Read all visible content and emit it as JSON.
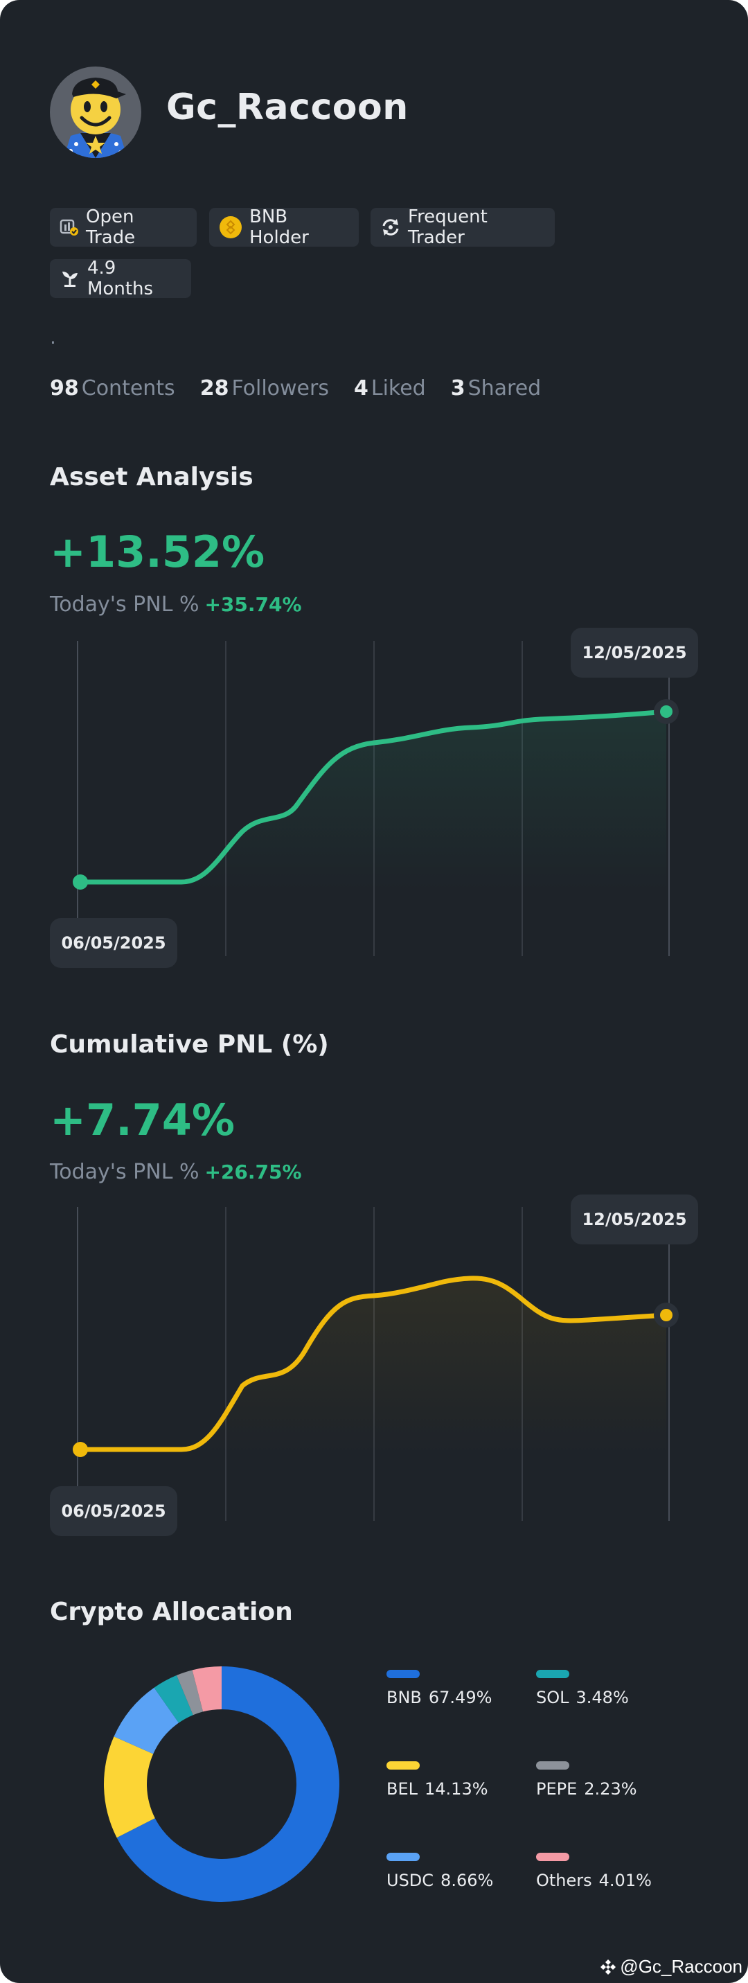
{
  "profile": {
    "username": "Gc_Raccoon",
    "badges": [
      {
        "label": "Open Trade",
        "icon": "open-trade-icon"
      },
      {
        "label": "BNB Holder",
        "icon": "bnb-coin-icon"
      },
      {
        "label": "Frequent Trader",
        "icon": "refresh-icon"
      },
      {
        "label": "4.9 Months",
        "icon": "sprout-icon"
      }
    ],
    "bio": ".",
    "stats": [
      {
        "num": "98",
        "label": "Contents"
      },
      {
        "num": "28",
        "label": "Followers"
      },
      {
        "num": "4",
        "label": "Liked"
      },
      {
        "num": "3",
        "label": "Shared"
      }
    ]
  },
  "asset_analysis": {
    "title": "Asset Analysis",
    "value": "+13.52%",
    "today_label": "Today's PNL %",
    "today_value": "+35.74%",
    "start_date": "06/05/2025",
    "end_date": "12/05/2025",
    "line_color": "#2ebd85"
  },
  "cumulative_pnl": {
    "title": "Cumulative PNL (%)",
    "value": "+7.74%",
    "today_label": "Today's PNL %",
    "today_value": "+26.75%",
    "start_date": "06/05/2025",
    "end_date": "12/05/2025",
    "line_color": "#f0b90b"
  },
  "allocation": {
    "title": "Crypto Allocation",
    "items": [
      {
        "name": "BNB",
        "pct": "67.49%",
        "color": "#1f6fdc"
      },
      {
        "name": "SOL",
        "pct": "3.48%",
        "color": "#1aa6b1"
      },
      {
        "name": "BEL",
        "pct": "14.13%",
        "color": "#fcd535"
      },
      {
        "name": "PEPE",
        "pct": "2.23%",
        "color": "#8d929a"
      },
      {
        "name": "USDC",
        "pct": "8.66%",
        "color": "#5aa2f5"
      },
      {
        "name": "Others",
        "pct": "4.01%",
        "color": "#f49aa5"
      }
    ]
  },
  "chart_data": [
    {
      "type": "pie",
      "title": "Crypto Allocation",
      "categories": [
        "BNB",
        "BEL",
        "USDC",
        "SOL",
        "PEPE",
        "Others"
      ],
      "values": [
        67.49,
        14.13,
        8.66,
        3.48,
        2.23,
        4.01
      ],
      "colors": [
        "#1f6fdc",
        "#fcd535",
        "#5aa2f5",
        "#1aa6b1",
        "#8d929a",
        "#f49aa5"
      ]
    }
  ],
  "watermark": "@Gc_Raccoon"
}
